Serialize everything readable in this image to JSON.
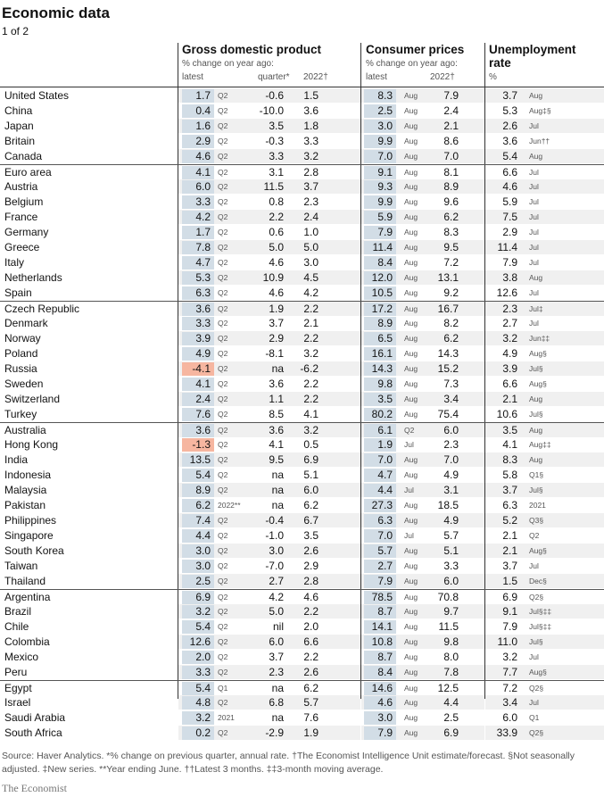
{
  "title": "Economic data",
  "subtitle": "1 of 2",
  "headers": {
    "gdp": {
      "name": "Gross domestic product",
      "sub": "% change on year ago:",
      "latest": "latest",
      "quarter": "quarter*",
      "y2022": "2022†"
    },
    "cpi": {
      "name": "Consumer prices",
      "sub": "% change on year ago:",
      "latest": "latest",
      "y2022": "2022†"
    },
    "unemp": {
      "name": "Unemployment",
      "name2": "rate",
      "unit": "%"
    }
  },
  "rows": [
    {
      "country": "United States",
      "gdp": "1.7",
      "gdp_p": "Q2",
      "q": "-0.6",
      "g22": "1.5",
      "cpi": "8.3",
      "cpi_p": "Aug",
      "c22": "7.9",
      "u": "3.7",
      "u_p": "Aug"
    },
    {
      "country": "China",
      "gdp": "0.4",
      "gdp_p": "Q2",
      "q": "-10.0",
      "g22": "3.6",
      "cpi": "2.5",
      "cpi_p": "Aug",
      "c22": "2.4",
      "u": "5.3",
      "u_p": "Aug‡§"
    },
    {
      "country": "Japan",
      "gdp": "1.6",
      "gdp_p": "Q2",
      "q": "3.5",
      "g22": "1.8",
      "cpi": "3.0",
      "cpi_p": "Aug",
      "c22": "2.1",
      "u": "2.6",
      "u_p": "Jul"
    },
    {
      "country": "Britain",
      "gdp": "2.9",
      "gdp_p": "Q2",
      "q": "-0.3",
      "g22": "3.3",
      "cpi": "9.9",
      "cpi_p": "Aug",
      "c22": "8.6",
      "u": "3.6",
      "u_p": "Jun††"
    },
    {
      "country": "Canada",
      "gdp": "4.6",
      "gdp_p": "Q2",
      "q": "3.3",
      "g22": "3.2",
      "cpi": "7.0",
      "cpi_p": "Aug",
      "c22": "7.0",
      "u": "5.4",
      "u_p": "Aug"
    },
    {
      "country": "Euro area",
      "gdp": "4.1",
      "gdp_p": "Q2",
      "q": "3.1",
      "g22": "2.8",
      "cpi": "9.1",
      "cpi_p": "Aug",
      "c22": "8.1",
      "u": "6.6",
      "u_p": "Jul",
      "sep": true
    },
    {
      "country": "Austria",
      "gdp": "6.0",
      "gdp_p": "Q2",
      "q": "11.5",
      "g22": "3.7",
      "cpi": "9.3",
      "cpi_p": "Aug",
      "c22": "8.9",
      "u": "4.6",
      "u_p": "Jul"
    },
    {
      "country": "Belgium",
      "gdp": "3.3",
      "gdp_p": "Q2",
      "q": "0.8",
      "g22": "2.3",
      "cpi": "9.9",
      "cpi_p": "Aug",
      "c22": "9.6",
      "u": "5.9",
      "u_p": "Jul"
    },
    {
      "country": "France",
      "gdp": "4.2",
      "gdp_p": "Q2",
      "q": "2.2",
      "g22": "2.4",
      "cpi": "5.9",
      "cpi_p": "Aug",
      "c22": "6.2",
      "u": "7.5",
      "u_p": "Jul"
    },
    {
      "country": "Germany",
      "gdp": "1.7",
      "gdp_p": "Q2",
      "q": "0.6",
      "g22": "1.0",
      "cpi": "7.9",
      "cpi_p": "Aug",
      "c22": "8.3",
      "u": "2.9",
      "u_p": "Jul"
    },
    {
      "country": "Greece",
      "gdp": "7.8",
      "gdp_p": "Q2",
      "q": "5.0",
      "g22": "5.0",
      "cpi": "11.4",
      "cpi_p": "Aug",
      "c22": "9.5",
      "u": "11.4",
      "u_p": "Jul"
    },
    {
      "country": "Italy",
      "gdp": "4.7",
      "gdp_p": "Q2",
      "q": "4.6",
      "g22": "3.0",
      "cpi": "8.4",
      "cpi_p": "Aug",
      "c22": "7.2",
      "u": "7.9",
      "u_p": "Jul"
    },
    {
      "country": "Netherlands",
      "gdp": "5.3",
      "gdp_p": "Q2",
      "q": "10.9",
      "g22": "4.5",
      "cpi": "12.0",
      "cpi_p": "Aug",
      "c22": "13.1",
      "u": "3.8",
      "u_p": "Aug"
    },
    {
      "country": "Spain",
      "gdp": "6.3",
      "gdp_p": "Q2",
      "q": "4.6",
      "g22": "4.2",
      "cpi": "10.5",
      "cpi_p": "Aug",
      "c22": "9.2",
      "u": "12.6",
      "u_p": "Jul"
    },
    {
      "country": "Czech Republic",
      "gdp": "3.6",
      "gdp_p": "Q2",
      "q": "1.9",
      "g22": "2.2",
      "cpi": "17.2",
      "cpi_p": "Aug",
      "c22": "16.7",
      "u": "2.3",
      "u_p": "Jul‡",
      "sep": true
    },
    {
      "country": "Denmark",
      "gdp": "3.3",
      "gdp_p": "Q2",
      "q": "3.7",
      "g22": "2.1",
      "cpi": "8.9",
      "cpi_p": "Aug",
      "c22": "8.2",
      "u": "2.7",
      "u_p": "Jul"
    },
    {
      "country": "Norway",
      "gdp": "3.9",
      "gdp_p": "Q2",
      "q": "2.9",
      "g22": "2.2",
      "cpi": "6.5",
      "cpi_p": "Aug",
      "c22": "6.2",
      "u": "3.2",
      "u_p": "Jun‡‡"
    },
    {
      "country": "Poland",
      "gdp": "4.9",
      "gdp_p": "Q2",
      "q": "-8.1",
      "g22": "3.2",
      "cpi": "16.1",
      "cpi_p": "Aug",
      "c22": "14.3",
      "u": "4.9",
      "u_p": "Aug§"
    },
    {
      "country": "Russia",
      "gdp": "-4.1",
      "gdp_p": "Q2",
      "q": "na",
      "g22": "-6.2",
      "cpi": "14.3",
      "cpi_p": "Aug",
      "c22": "15.2",
      "u": "3.9",
      "u_p": "Jul§",
      "neg": true
    },
    {
      "country": "Sweden",
      "gdp": "4.1",
      "gdp_p": "Q2",
      "q": "3.6",
      "g22": "2.2",
      "cpi": "9.8",
      "cpi_p": "Aug",
      "c22": "7.3",
      "u": "6.6",
      "u_p": "Aug§"
    },
    {
      "country": "Switzerland",
      "gdp": "2.4",
      "gdp_p": "Q2",
      "q": "1.1",
      "g22": "2.2",
      "cpi": "3.5",
      "cpi_p": "Aug",
      "c22": "3.4",
      "u": "2.1",
      "u_p": "Aug"
    },
    {
      "country": "Turkey",
      "gdp": "7.6",
      "gdp_p": "Q2",
      "q": "8.5",
      "g22": "4.1",
      "cpi": "80.2",
      "cpi_p": "Aug",
      "c22": "75.4",
      "u": "10.6",
      "u_p": "Jul§"
    },
    {
      "country": "Australia",
      "gdp": "3.6",
      "gdp_p": "Q2",
      "q": "3.6",
      "g22": "3.2",
      "cpi": "6.1",
      "cpi_p": "Q2",
      "c22": "6.0",
      "u": "3.5",
      "u_p": "Aug",
      "sep": true
    },
    {
      "country": "Hong Kong",
      "gdp": "-1.3",
      "gdp_p": "Q2",
      "q": "4.1",
      "g22": "0.5",
      "cpi": "1.9",
      "cpi_p": "Jul",
      "c22": "2.3",
      "u": "4.1",
      "u_p": "Aug‡‡",
      "neg": true
    },
    {
      "country": "India",
      "gdp": "13.5",
      "gdp_p": "Q2",
      "q": "9.5",
      "g22": "6.9",
      "cpi": "7.0",
      "cpi_p": "Aug",
      "c22": "7.0",
      "u": "8.3",
      "u_p": "Aug"
    },
    {
      "country": "Indonesia",
      "gdp": "5.4",
      "gdp_p": "Q2",
      "q": "na",
      "g22": "5.1",
      "cpi": "4.7",
      "cpi_p": "Aug",
      "c22": "4.9",
      "u": "5.8",
      "u_p": "Q1§"
    },
    {
      "country": "Malaysia",
      "gdp": "8.9",
      "gdp_p": "Q2",
      "q": "na",
      "g22": "6.0",
      "cpi": "4.4",
      "cpi_p": "Jul",
      "c22": "3.1",
      "u": "3.7",
      "u_p": "Jul§"
    },
    {
      "country": "Pakistan",
      "gdp": "6.2",
      "gdp_p": "2022**",
      "q": "na",
      "g22": "6.2",
      "cpi": "27.3",
      "cpi_p": "Aug",
      "c22": "18.5",
      "u": "6.3",
      "u_p": "2021"
    },
    {
      "country": "Philippines",
      "gdp": "7.4",
      "gdp_p": "Q2",
      "q": "-0.4",
      "g22": "6.7",
      "cpi": "6.3",
      "cpi_p": "Aug",
      "c22": "4.9",
      "u": "5.2",
      "u_p": "Q3§"
    },
    {
      "country": "Singapore",
      "gdp": "4.4",
      "gdp_p": "Q2",
      "q": "-1.0",
      "g22": "3.5",
      "cpi": "7.0",
      "cpi_p": "Jul",
      "c22": "5.7",
      "u": "2.1",
      "u_p": "Q2"
    },
    {
      "country": "South Korea",
      "gdp": "3.0",
      "gdp_p": "Q2",
      "q": "3.0",
      "g22": "2.6",
      "cpi": "5.7",
      "cpi_p": "Aug",
      "c22": "5.1",
      "u": "2.1",
      "u_p": "Aug§"
    },
    {
      "country": "Taiwan",
      "gdp": "3.0",
      "gdp_p": "Q2",
      "q": "-7.0",
      "g22": "2.9",
      "cpi": "2.7",
      "cpi_p": "Aug",
      "c22": "3.3",
      "u": "3.7",
      "u_p": "Jul"
    },
    {
      "country": "Thailand",
      "gdp": "2.5",
      "gdp_p": "Q2",
      "q": "2.7",
      "g22": "2.8",
      "cpi": "7.9",
      "cpi_p": "Aug",
      "c22": "6.0",
      "u": "1.5",
      "u_p": "Dec§"
    },
    {
      "country": "Argentina",
      "gdp": "6.9",
      "gdp_p": "Q2",
      "q": "4.2",
      "g22": "4.6",
      "cpi": "78.5",
      "cpi_p": "Aug",
      "c22": "70.8",
      "u": "6.9",
      "u_p": "Q2§",
      "sep": true
    },
    {
      "country": "Brazil",
      "gdp": "3.2",
      "gdp_p": "Q2",
      "q": "5.0",
      "g22": "2.2",
      "cpi": "8.7",
      "cpi_p": "Aug",
      "c22": "9.7",
      "u": "9.1",
      "u_p": "Jul§‡‡"
    },
    {
      "country": "Chile",
      "gdp": "5.4",
      "gdp_p": "Q2",
      "q": "nil",
      "g22": "2.0",
      "cpi": "14.1",
      "cpi_p": "Aug",
      "c22": "11.5",
      "u": "7.9",
      "u_p": "Jul§‡‡"
    },
    {
      "country": "Colombia",
      "gdp": "12.6",
      "gdp_p": "Q2",
      "q": "6.0",
      "g22": "6.6",
      "cpi": "10.8",
      "cpi_p": "Aug",
      "c22": "9.8",
      "u": "11.0",
      "u_p": "Jul§"
    },
    {
      "country": "Mexico",
      "gdp": "2.0",
      "gdp_p": "Q2",
      "q": "3.7",
      "g22": "2.2",
      "cpi": "8.7",
      "cpi_p": "Aug",
      "c22": "8.0",
      "u": "3.2",
      "u_p": "Jul"
    },
    {
      "country": "Peru",
      "gdp": "3.3",
      "gdp_p": "Q2",
      "q": "2.3",
      "g22": "2.6",
      "cpi": "8.4",
      "cpi_p": "Aug",
      "c22": "7.8",
      "u": "7.7",
      "u_p": "Aug§"
    },
    {
      "country": "Egypt",
      "gdp": "5.4",
      "gdp_p": "Q1",
      "q": "na",
      "g22": "6.2",
      "cpi": "14.6",
      "cpi_p": "Aug",
      "c22": "12.5",
      "u": "7.2",
      "u_p": "Q2§",
      "sep": true
    },
    {
      "country": "Israel",
      "gdp": "4.8",
      "gdp_p": "Q2",
      "q": "6.8",
      "g22": "5.7",
      "cpi": "4.6",
      "cpi_p": "Aug",
      "c22": "4.4",
      "u": "3.4",
      "u_p": "Jul"
    },
    {
      "country": "Saudi Arabia",
      "gdp": "3.2",
      "gdp_p": "2021",
      "q": "na",
      "g22": "7.6",
      "cpi": "3.0",
      "cpi_p": "Aug",
      "c22": "2.5",
      "u": "6.0",
      "u_p": "Q1"
    },
    {
      "country": "South Africa",
      "gdp": "0.2",
      "gdp_p": "Q2",
      "q": "-2.9",
      "g22": "1.9",
      "cpi": "7.9",
      "cpi_p": "Aug",
      "c22": "6.9",
      "u": "33.9",
      "u_p": "Q2§"
    }
  ],
  "footnote": "Source: Haver Analytics. *% change on previous quarter, annual rate. †The Economist Intelligence Unit estimate/forecast. §Not seasonally adjusted. ‡New series. **Year ending June. ††Latest 3 months. ‡‡3-month moving average.",
  "brand": "The Economist"
}
